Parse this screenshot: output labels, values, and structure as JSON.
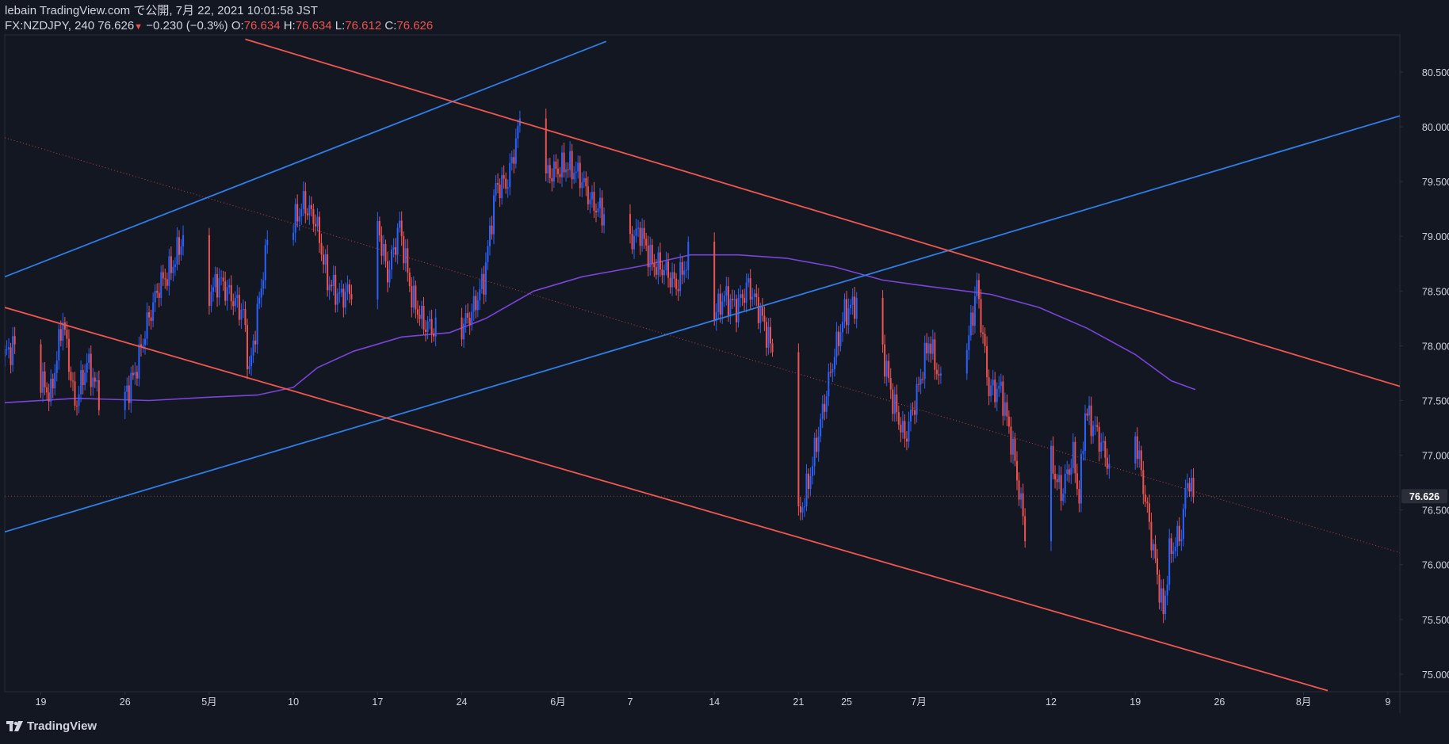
{
  "header": {
    "publisher": "lebain TradingView.com で公開, 7月 22, 2021 10:01:58 JST",
    "symbol": "FX:NZDJPY, 240",
    "price": "76.626",
    "change_arrow": "▼",
    "change": "−0.230 (−0.3%)",
    "o_label": "O:",
    "o_value": "76.634",
    "h_label": "H:",
    "h_value": "76.634",
    "l_label": "L:",
    "l_value": "76.612",
    "c_label": "C:",
    "c_value": "76.626"
  },
  "footer": {
    "brand": "TradingView"
  },
  "colors": {
    "background": "#131722",
    "up": "#2962ff",
    "down": "#ef5350",
    "channel_blue": "#2e7ee6",
    "channel_red": "#f0574e",
    "ma": "#7a44d9",
    "axis_text": "#d1d4dc",
    "border": "#2a2e39"
  },
  "chart_data": {
    "type": "candlestick",
    "symbol": "FX:NZDJPY",
    "interval": "240",
    "ylim": [
      74.84,
      80.84
    ],
    "y_ticks": [
      75.0,
      75.5,
      76.0,
      76.5,
      77.0,
      77.5,
      78.0,
      78.5,
      79.0,
      79.5,
      80.0,
      80.5
    ],
    "y_tick_labels": [
      "75.000",
      "75.500",
      "76.000",
      "76.500",
      "77.000",
      "77.500",
      "78.000",
      "78.500",
      "79.000",
      "79.500",
      "80.000",
      "80.500"
    ],
    "x_start": "2021-04-16",
    "x_end": "2021-08-10",
    "x_ticks": [
      {
        "date": "2021-04-19",
        "label": "19"
      },
      {
        "date": "2021-04-26",
        "label": "26"
      },
      {
        "date": "2021-05-03",
        "label": "5月"
      },
      {
        "date": "2021-05-10",
        "label": "10"
      },
      {
        "date": "2021-05-17",
        "label": "17"
      },
      {
        "date": "2021-05-24",
        "label": "24"
      },
      {
        "date": "2021-06-01",
        "label": "6月"
      },
      {
        "date": "2021-06-07",
        "label": "7"
      },
      {
        "date": "2021-06-14",
        "label": "14"
      },
      {
        "date": "2021-06-21",
        "label": "21"
      },
      {
        "date": "2021-06-25",
        "label": "25"
      },
      {
        "date": "2021-07-01",
        "label": "7月"
      },
      {
        "date": "2021-07-12",
        "label": "12"
      },
      {
        "date": "2021-07-19",
        "label": "19"
      },
      {
        "date": "2021-07-26",
        "label": "26"
      },
      {
        "date": "2021-08-02",
        "label": "8月"
      },
      {
        "date": "2021-08-09",
        "label": "9"
      }
    ],
    "last_price": 76.626,
    "last_price_label": "76.626",
    "price_path": [
      [
        "2021-04-16",
        77.9
      ],
      [
        "2021-04-17",
        78.0
      ],
      [
        "2021-04-18",
        77.85
      ],
      [
        "2021-04-20",
        77.55
      ],
      [
        "2021-04-21",
        78.25
      ],
      [
        "2021-04-22",
        77.45
      ],
      [
        "2021-04-23",
        77.85
      ],
      [
        "2021-04-25",
        77.25
      ],
      [
        "2021-04-27",
        77.75
      ],
      [
        "2021-04-28",
        78.2
      ],
      [
        "2021-04-29",
        78.55
      ],
      [
        "2021-04-30",
        78.7
      ],
      [
        "2021-05-01",
        79.0
      ],
      [
        "2021-05-02",
        78.95
      ],
      [
        "2021-05-03",
        78.45
      ],
      [
        "2021-05-04",
        78.6
      ],
      [
        "2021-05-06",
        78.3
      ],
      [
        "2021-05-06T12",
        77.75
      ],
      [
        "2021-05-08",
        78.95
      ],
      [
        "2021-05-09",
        78.85
      ],
      [
        "2021-05-11",
        79.3
      ],
      [
        "2021-05-12",
        79.15
      ],
      [
        "2021-05-13",
        78.6
      ],
      [
        "2021-05-14",
        78.45
      ],
      [
        "2021-05-15",
        78.5
      ],
      [
        "2021-05-17",
        79.2
      ],
      [
        "2021-05-18",
        78.65
      ],
      [
        "2021-05-19",
        79.1
      ],
      [
        "2021-05-20",
        78.45
      ],
      [
        "2021-05-21",
        78.2
      ],
      [
        "2021-05-22",
        78.15
      ],
      [
        "2021-05-23",
        78.0
      ],
      [
        "2021-05-25",
        78.3
      ],
      [
        "2021-05-26",
        78.6
      ],
      [
        "2021-05-27",
        79.45
      ],
      [
        "2021-05-28",
        79.5
      ],
      [
        "2021-05-29",
        80.05
      ],
      [
        "2021-05-30",
        79.6
      ],
      [
        "2021-05-31",
        79.55
      ],
      [
        "2021-06-02",
        79.65
      ],
      [
        "2021-06-03",
        79.55
      ],
      [
        "2021-06-04",
        79.3
      ],
      [
        "2021-06-05",
        79.2
      ],
      [
        "2021-06-06",
        78.75
      ],
      [
        "2021-06-07",
        78.95
      ],
      [
        "2021-06-08",
        79.05
      ],
      [
        "2021-06-09",
        78.75
      ],
      [
        "2021-06-10",
        78.7
      ],
      [
        "2021-06-11",
        78.55
      ],
      [
        "2021-06-12",
        78.8
      ],
      [
        "2021-06-13",
        78.7
      ],
      [
        "2021-06-14",
        78.25
      ],
      [
        "2021-06-15",
        78.45
      ],
      [
        "2021-06-16",
        78.35
      ],
      [
        "2021-06-17",
        78.55
      ],
      [
        "2021-06-18",
        78.3
      ],
      [
        "2021-06-19",
        77.95
      ],
      [
        "2021-06-19T12",
        77.4
      ],
      [
        "2021-06-20",
        76.8
      ],
      [
        "2021-06-21",
        76.35
      ],
      [
        "2021-06-22",
        76.75
      ],
      [
        "2021-06-23",
        77.3
      ],
      [
        "2021-06-24",
        77.85
      ],
      [
        "2021-06-25",
        78.3
      ],
      [
        "2021-06-26",
        78.4
      ],
      [
        "2021-06-27",
        78.4
      ],
      [
        "2021-06-28",
        78.05
      ],
      [
        "2021-06-29",
        77.5
      ],
      [
        "2021-06-30",
        77.15
      ],
      [
        "2021-07-01",
        77.55
      ],
      [
        "2021-07-02",
        78.05
      ],
      [
        "2021-07-03",
        77.65
      ],
      [
        "2021-07-04",
        78.05
      ],
      [
        "2021-07-05",
        77.85
      ],
      [
        "2021-07-06",
        78.55
      ],
      [
        "2021-07-07",
        77.6
      ],
      [
        "2021-07-08",
        77.6
      ],
      [
        "2021-07-09",
        77.05
      ],
      [
        "2021-07-10",
        76.3
      ],
      [
        "2021-07-11",
        76.35
      ],
      [
        "2021-07-12",
        77.0
      ],
      [
        "2021-07-13",
        76.65
      ],
      [
        "2021-07-14",
        77.0
      ],
      [
        "2021-07-14T12",
        76.6
      ],
      [
        "2021-07-15",
        77.4
      ],
      [
        "2021-07-16",
        77.2
      ],
      [
        "2021-07-17",
        76.9
      ],
      [
        "2021-07-18",
        77.1
      ],
      [
        "2021-07-19",
        77.3
      ],
      [
        "2021-07-20",
        76.6
      ],
      [
        "2021-07-21",
        75.9
      ],
      [
        "2021-07-21T12",
        75.55
      ],
      [
        "2021-07-22",
        76.1
      ],
      [
        "2021-07-23",
        76.3
      ],
      [
        "2021-07-23T12",
        76.8
      ],
      [
        "2021-07-24",
        76.626
      ]
    ],
    "moving_average": [
      [
        "2021-04-16",
        77.48
      ],
      [
        "2021-04-22",
        77.52
      ],
      [
        "2021-04-28",
        77.5
      ],
      [
        "2021-05-03",
        77.53
      ],
      [
        "2021-05-07",
        77.55
      ],
      [
        "2021-05-10",
        77.62
      ],
      [
        "2021-05-12",
        77.8
      ],
      [
        "2021-05-15",
        77.95
      ],
      [
        "2021-05-19",
        78.08
      ],
      [
        "2021-05-23",
        78.12
      ],
      [
        "2021-05-26",
        78.25
      ],
      [
        "2021-05-30",
        78.5
      ],
      [
        "2021-06-03",
        78.63
      ],
      [
        "2021-06-08",
        78.73
      ],
      [
        "2021-06-12",
        78.83
      ],
      [
        "2021-06-16",
        78.83
      ],
      [
        "2021-06-20",
        78.8
      ],
      [
        "2021-06-24",
        78.72
      ],
      [
        "2021-06-28",
        78.6
      ],
      [
        "2021-07-02",
        78.54
      ],
      [
        "2021-07-07",
        78.47
      ],
      [
        "2021-07-11",
        78.35
      ],
      [
        "2021-07-15",
        78.16
      ],
      [
        "2021-07-19",
        77.92
      ],
      [
        "2021-07-22",
        77.68
      ],
      [
        "2021-07-24",
        77.6
      ]
    ],
    "channel_lines": [
      {
        "color": "blue",
        "points": [
          [
            "2021-04-16",
            78.63
          ],
          [
            "2021-06-05",
            80.78
          ]
        ]
      },
      {
        "color": "blue",
        "points": [
          [
            "2021-04-16",
            76.3
          ],
          [
            "2021-08-10",
            80.1
          ]
        ]
      },
      {
        "color": "red",
        "points": [
          [
            "2021-05-06",
            80.8
          ],
          [
            "2021-08-10",
            77.63
          ]
        ]
      },
      {
        "color": "red",
        "points": [
          [
            "2021-04-16",
            78.35
          ],
          [
            "2021-08-04",
            74.85
          ]
        ]
      },
      {
        "color": "red",
        "style": "dotted",
        "points": [
          [
            "2021-04-16",
            79.9
          ],
          [
            "2021-08-10",
            76.11
          ]
        ]
      }
    ]
  }
}
